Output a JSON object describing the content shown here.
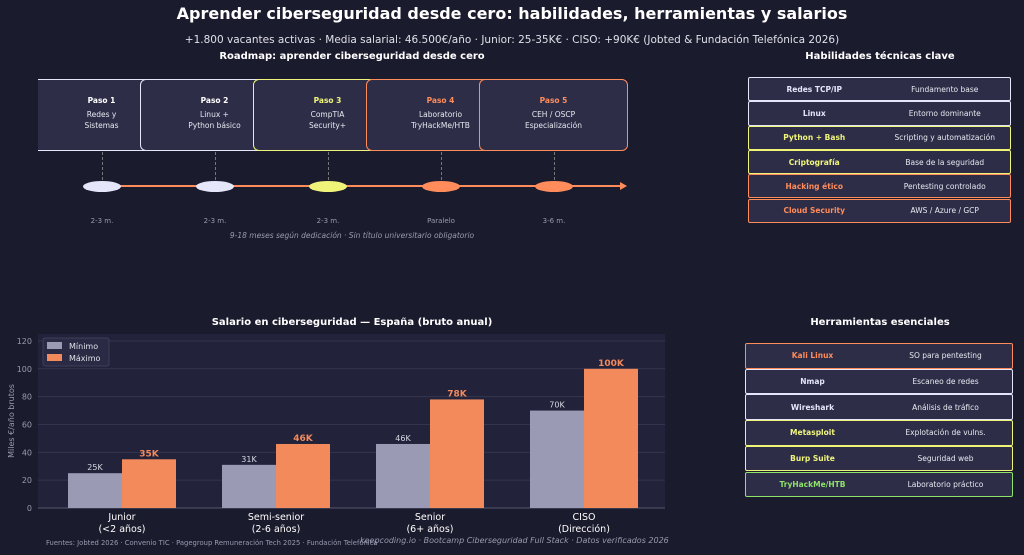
{
  "header": {
    "title": "Aprender ciberseguridad desde cero: habilidades, herramientas y salarios",
    "subtitle": "+1.800 vacantes activas · Media salarial: 46.500€/año · Junior: 25-35K€ · CISO: +90K€ (Jobted & Fundación Telefónica 2026)"
  },
  "roadmap": {
    "title": "Roadmap: aprender ciberseguridad desde cero",
    "caption": "9-18 meses según dedicación · Sin título universitario obligatorio",
    "steps": [
      {
        "label": "Paso 1",
        "line1": "Redes y",
        "line2": "Sistemas",
        "duration": "2-3 m.",
        "color": "#e6e6fa"
      },
      {
        "label": "Paso 2",
        "line1": "Linux +",
        "line2": "Python básico",
        "duration": "2-3 m.",
        "color": "#e6e6fa"
      },
      {
        "label": "Paso 3",
        "line1": "CompTIA",
        "line2": "Security+",
        "duration": "2-3 m.",
        "color": "#f0f57a"
      },
      {
        "label": "Paso 4",
        "line1": "Laboratorio",
        "line2": "TryHackMe/HTB",
        "duration": "Paralelo",
        "color": "#ff8c5a"
      },
      {
        "label": "Paso 5",
        "line1": "CEH / OSCP",
        "line2": "Especialización",
        "duration": "3-6 m.",
        "color": "#ff8c5a"
      }
    ]
  },
  "skills": {
    "title": "Habilidades técnicas clave",
    "items": [
      {
        "name": "Redes TCP/IP",
        "desc": "Fundamento base",
        "color": "#e6e6fa"
      },
      {
        "name": "Linux",
        "desc": "Entorno dominante",
        "color": "#e6e6fa"
      },
      {
        "name": "Python + Bash",
        "desc": "Scripting y automatización",
        "color": "#f0f57a"
      },
      {
        "name": "Criptografía",
        "desc": "Base de la seguridad",
        "color": "#f0f57a"
      },
      {
        "name": "Hacking ético",
        "desc": "Pentesting controlado",
        "color": "#ff8c5a"
      },
      {
        "name": "Cloud Security",
        "desc": "AWS / Azure / GCP",
        "color": "#ff8c5a"
      }
    ]
  },
  "tools": {
    "title": "Herramientas esenciales",
    "items": [
      {
        "name": "Kali Linux",
        "desc": "SO para pentesting",
        "color": "#ff8c5a"
      },
      {
        "name": "Nmap",
        "desc": "Escaneo de redes",
        "color": "#e6e6fa"
      },
      {
        "name": "Wireshark",
        "desc": "Análisis de tráfico",
        "color": "#e6e6fa"
      },
      {
        "name": "Metasploit",
        "desc": "Explotación de vulns.",
        "color": "#f0f57a"
      },
      {
        "name": "Burp Suite",
        "desc": "Seguridad web",
        "color": "#f0f57a"
      },
      {
        "name": "TryHackMe/HTB",
        "desc": "Laboratorio práctico",
        "color": "#8fe36a"
      }
    ]
  },
  "chart_data": {
    "type": "bar",
    "title": "Salario en ciberseguridad — España (bruto anual)",
    "ylabel": "Miles €/año brutos",
    "ylim": [
      0,
      125
    ],
    "yticks": [
      0,
      20,
      40,
      60,
      80,
      100,
      120
    ],
    "grid": true,
    "legend": "top-left",
    "categories": [
      [
        "Junior",
        "(<2 años)"
      ],
      [
        "Semi-senior",
        "(2-6 años)"
      ],
      [
        "Senior",
        "(6+ años)"
      ],
      [
        "CISO",
        "(Dirección)"
      ]
    ],
    "series": [
      {
        "name": "Mínimo",
        "values": [
          25,
          31,
          46,
          70
        ],
        "labels": [
          "25K",
          "31K",
          "46K",
          "70K"
        ],
        "color": "#9a9ab4"
      },
      {
        "name": "Máximo",
        "values": [
          35,
          46,
          78,
          100
        ],
        "labels": [
          "35K",
          "46K",
          "78K",
          "100K"
        ],
        "color": "#f28a5c"
      }
    ]
  },
  "footer": {
    "sources": "Fuentes: Jobted 2026 · Convenio TIC · Pagegroup Remuneración Tech 2025 · Fundación Telefónica",
    "watermark": "keepcoding.io  ·  Bootcamp Ciberseguridad Full Stack  ·  Datos verificados 2026"
  }
}
